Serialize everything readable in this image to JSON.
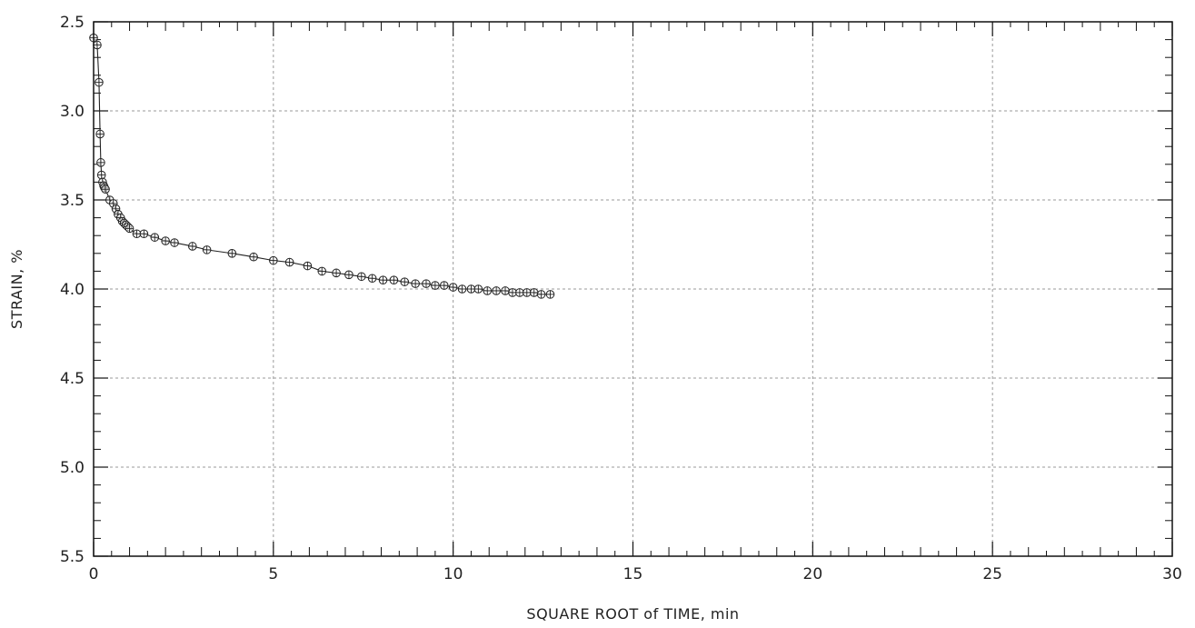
{
  "chart_data": {
    "type": "scatter",
    "title": "",
    "xlabel": "SQUARE ROOT of TIME, min",
    "ylabel": "STRAIN, %",
    "xlim": [
      0,
      30
    ],
    "ylim": [
      2.5,
      5.5
    ],
    "y_inverted": true,
    "grid": true,
    "x_ticks": [
      0,
      5,
      10,
      15,
      20,
      25,
      30
    ],
    "y_ticks": [
      2.5,
      3.0,
      3.5,
      4.0,
      4.5,
      5.0,
      5.5
    ],
    "x_tick_labels": [
      "0",
      "5",
      "10",
      "15",
      "20",
      "25",
      "30"
    ],
    "y_tick_labels": [
      "2.5",
      "3.0",
      "3.5",
      "4.0",
      "4.5",
      "5.0",
      "5.5"
    ],
    "series": [
      {
        "marker": "circle-crosshair",
        "line": true,
        "x": [
          0.0,
          0.1,
          0.15,
          0.18,
          0.2,
          0.22,
          0.25,
          0.28,
          0.3,
          0.33,
          0.45,
          0.55,
          0.62,
          0.68,
          0.75,
          0.8,
          0.85,
          0.9,
          0.95,
          1.0,
          1.2,
          1.4,
          1.7,
          2.0,
          2.25,
          2.75,
          3.15,
          3.85,
          4.45,
          5.0,
          5.45,
          5.95,
          6.35,
          6.75,
          7.1,
          7.45,
          7.75,
          8.05,
          8.35,
          8.65,
          8.95,
          9.25,
          9.5,
          9.75,
          10.0,
          10.25,
          10.5,
          10.7,
          10.95,
          11.2,
          11.45,
          11.65,
          11.85,
          12.05,
          12.25,
          12.45,
          12.7
        ],
        "y": [
          2.59,
          2.63,
          2.84,
          3.13,
          3.29,
          3.36,
          3.4,
          3.42,
          3.43,
          3.44,
          3.5,
          3.52,
          3.55,
          3.58,
          3.6,
          3.62,
          3.63,
          3.64,
          3.65,
          3.66,
          3.69,
          3.69,
          3.71,
          3.73,
          3.74,
          3.76,
          3.78,
          3.8,
          3.82,
          3.84,
          3.85,
          3.87,
          3.9,
          3.91,
          3.92,
          3.93,
          3.94,
          3.95,
          3.95,
          3.96,
          3.97,
          3.97,
          3.98,
          3.98,
          3.99,
          4.0,
          4.0,
          4.0,
          4.01,
          4.01,
          4.01,
          4.02,
          4.02,
          4.02,
          4.02,
          4.03,
          4.03
        ]
      }
    ]
  }
}
